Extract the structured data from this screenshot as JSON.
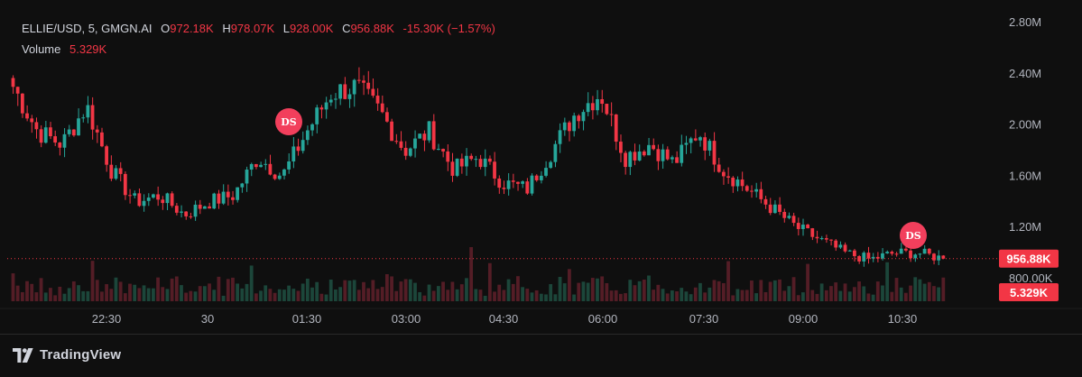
{
  "legend": {
    "symbol": "ELLIE/USD, 5, GMGN.AI",
    "open_label": "O",
    "open": "972.18K",
    "high_label": "H",
    "high": "978.07K",
    "low_label": "L",
    "low": "928.00K",
    "close_label": "C",
    "close": "956.88K",
    "change": "-15.30K (−1.57%)",
    "volume_label": "Volume",
    "volume": "5.329K"
  },
  "badges": {
    "price": "956.88K",
    "volume": "5.329K",
    "markers": [
      "DS",
      "DS"
    ]
  },
  "brand": {
    "name": "TradingView"
  },
  "colors": {
    "up": "#26a69a",
    "down": "#f23645",
    "marker": "#f23f5c",
    "bg": "#0f0f0f"
  },
  "chart_data": {
    "type": "candlestick",
    "y_axis": {
      "ticks": [
        "800.00K",
        "1.20M",
        "1.60M",
        "2.00M",
        "2.40M",
        "2.80M"
      ],
      "range": [
        800000,
        2800000
      ],
      "side": "right"
    },
    "x_axis": {
      "ticks": [
        "22:30",
        "30",
        "01:30",
        "03:00",
        "04:30",
        "06:00",
        "07:30",
        "09:00",
        "10:30"
      ]
    },
    "last_price": 956880,
    "approx_close_path": [
      2300000,
      1950000,
      1850000,
      2150000,
      1650000,
      1400000,
      1450000,
      1300000,
      1400000,
      1450000,
      1750000,
      1600000,
      1950000,
      2250000,
      2300000,
      2100000,
      1800000,
      1950000,
      1650000,
      1750000,
      1550000,
      1500000,
      1800000,
      2100000,
      2250000,
      1750000,
      1850000,
      1700000,
      1950000,
      1650000,
      1500000,
      1350000,
      1200000,
      1100000,
      1000000,
      950000,
      1000000,
      1000000,
      956880
    ]
  }
}
